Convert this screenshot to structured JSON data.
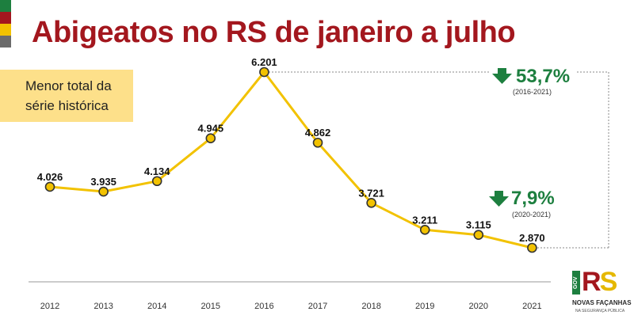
{
  "header": {
    "title": "Abigeatos no RS de janeiro a julho",
    "stripe_colors": [
      "#1d7f3f",
      "#a3171e",
      "#f2c200",
      "#6b6b6b"
    ]
  },
  "callout": {
    "line1": "Menor total da",
    "line2": "série histórica",
    "background": "#fde08a"
  },
  "annotations": {
    "long_term": {
      "value": "53,7%",
      "period": "(2016-2021)"
    },
    "short_term": {
      "value": "7,9%",
      "period": "(2020-2021)"
    },
    "arrow_color": "#1d7f3f",
    "arrow_icon": "arrow-down-icon"
  },
  "logo": {
    "gov": "GOV",
    "rs_r": "R",
    "rs_s": "S",
    "name": "NOVAS FAÇANHAS",
    "sub": "NA SEGURANÇA PÚBLICA"
  },
  "chart_data": {
    "type": "line",
    "title": "Abigeatos no RS de janeiro a julho",
    "categories": [
      "2012",
      "2013",
      "2014",
      "2015",
      "2016",
      "2017",
      "2018",
      "2019",
      "2020",
      "2021"
    ],
    "values": [
      4026,
      3935,
      4134,
      4945,
      6201,
      4862,
      3721,
      3211,
      3115,
      2870
    ],
    "labels": [
      "4.026",
      "3.935",
      "4.134",
      "4.945",
      "6.201",
      "4.862",
      "3.721",
      "3.211",
      "3.115",
      "2.870"
    ],
    "line_color": "#f2c200",
    "point_fill": "#f2c200",
    "point_stroke": "#333333",
    "ylim": [
      2000,
      6300
    ],
    "grid": false,
    "legend": "none"
  }
}
